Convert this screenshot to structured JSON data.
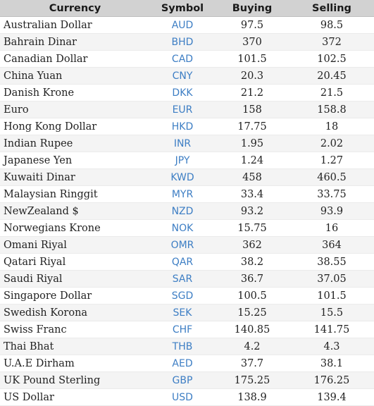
{
  "colors": {
    "header_bg": "#d2d2d2",
    "symbol_text": "#3d7ec4",
    "row_alt_bg": "#f4f4f4"
  },
  "table": {
    "headers": [
      "Currency",
      "Symbol",
      "Buying",
      "Selling"
    ],
    "rows": [
      {
        "currency": "Australian Dollar",
        "symbol": "AUD",
        "buying": "97.5",
        "selling": "98.5"
      },
      {
        "currency": "Bahrain Dinar",
        "symbol": "BHD",
        "buying": "370",
        "selling": "372"
      },
      {
        "currency": "Canadian Dollar",
        "symbol": "CAD",
        "buying": "101.5",
        "selling": "102.5"
      },
      {
        "currency": "China Yuan",
        "symbol": "CNY",
        "buying": "20.3",
        "selling": "20.45"
      },
      {
        "currency": "Danish Krone",
        "symbol": "DKK",
        "buying": "21.2",
        "selling": "21.5"
      },
      {
        "currency": "Euro",
        "symbol": "EUR",
        "buying": "158",
        "selling": "158.8"
      },
      {
        "currency": "Hong Kong Dollar",
        "symbol": "HKD",
        "buying": "17.75",
        "selling": "18"
      },
      {
        "currency": "Indian Rupee",
        "symbol": "INR",
        "buying": "1.95",
        "selling": "2.02"
      },
      {
        "currency": "Japanese Yen",
        "symbol": "JPY",
        "buying": "1.24",
        "selling": "1.27"
      },
      {
        "currency": "Kuwaiti Dinar",
        "symbol": "KWD",
        "buying": "458",
        "selling": "460.5"
      },
      {
        "currency": "Malaysian Ringgit",
        "symbol": "MYR",
        "buying": "33.4",
        "selling": "33.75"
      },
      {
        "currency": "NewZealand $",
        "symbol": "NZD",
        "buying": "93.2",
        "selling": "93.9"
      },
      {
        "currency": "Norwegians Krone",
        "symbol": "NOK",
        "buying": "15.75",
        "selling": "16"
      },
      {
        "currency": "Omani Riyal",
        "symbol": "OMR",
        "buying": "362",
        "selling": "364"
      },
      {
        "currency": "Qatari Riyal",
        "symbol": "QAR",
        "buying": "38.2",
        "selling": "38.55"
      },
      {
        "currency": "Saudi Riyal",
        "symbol": "SAR",
        "buying": "36.7",
        "selling": "37.05"
      },
      {
        "currency": "Singapore Dollar",
        "symbol": "SGD",
        "buying": "100.5",
        "selling": "101.5"
      },
      {
        "currency": "Swedish Korona",
        "symbol": "SEK",
        "buying": "15.25",
        "selling": "15.5"
      },
      {
        "currency": "Swiss Franc",
        "symbol": "CHF",
        "buying": "140.85",
        "selling": "141.75"
      },
      {
        "currency": "Thai Bhat",
        "symbol": "THB",
        "buying": "4.2",
        "selling": "4.3"
      },
      {
        "currency": "U.A.E Dirham",
        "symbol": "AED",
        "buying": "37.7",
        "selling": "38.1"
      },
      {
        "currency": "UK Pound Sterling",
        "symbol": "GBP",
        "buying": "175.25",
        "selling": "176.25"
      },
      {
        "currency": "US Dollar",
        "symbol": "USD",
        "buying": "138.9",
        "selling": "139.4"
      }
    ]
  }
}
